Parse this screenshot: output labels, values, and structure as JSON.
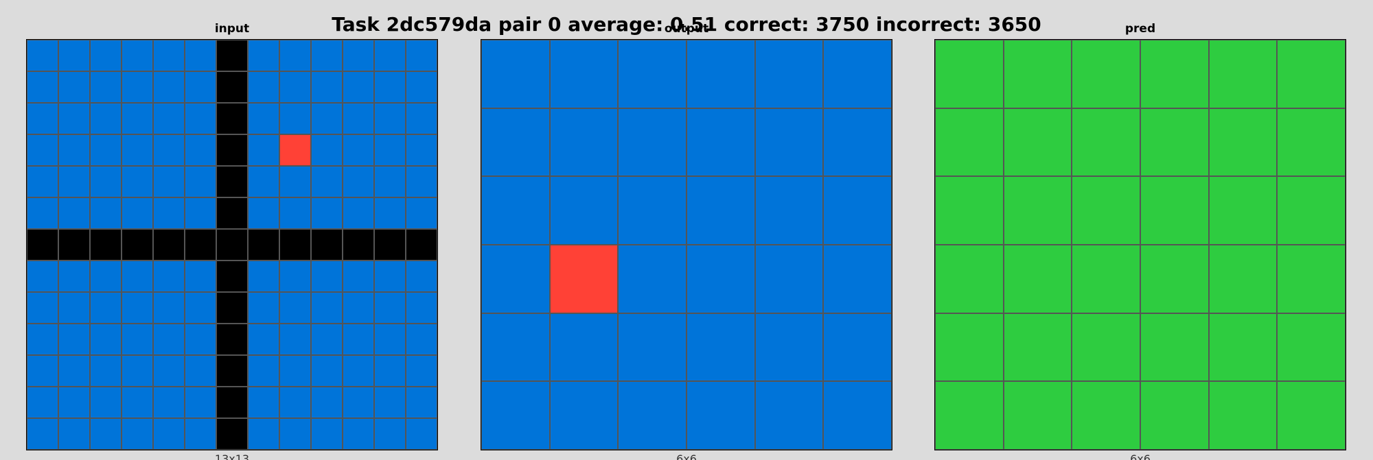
{
  "title": "Task 2dc579da pair 0 average: 0.51 correct: 3750 incorrect: 3650",
  "palette": {
    "0": "#000000",
    "1": "#0074D9",
    "2": "#FF4136",
    "3": "#2ECC40"
  },
  "panels": [
    {
      "name": "input",
      "title": "input",
      "caption": "13x13",
      "grid": [
        [
          1,
          1,
          1,
          1,
          1,
          1,
          0,
          1,
          1,
          1,
          1,
          1,
          1
        ],
        [
          1,
          1,
          1,
          1,
          1,
          1,
          0,
          1,
          1,
          1,
          1,
          1,
          1
        ],
        [
          1,
          1,
          1,
          1,
          1,
          1,
          0,
          1,
          1,
          1,
          1,
          1,
          1
        ],
        [
          1,
          1,
          1,
          1,
          1,
          1,
          0,
          1,
          2,
          1,
          1,
          1,
          1
        ],
        [
          1,
          1,
          1,
          1,
          1,
          1,
          0,
          1,
          1,
          1,
          1,
          1,
          1
        ],
        [
          1,
          1,
          1,
          1,
          1,
          1,
          0,
          1,
          1,
          1,
          1,
          1,
          1
        ],
        [
          0,
          0,
          0,
          0,
          0,
          0,
          0,
          0,
          0,
          0,
          0,
          0,
          0
        ],
        [
          1,
          1,
          1,
          1,
          1,
          1,
          0,
          1,
          1,
          1,
          1,
          1,
          1
        ],
        [
          1,
          1,
          1,
          1,
          1,
          1,
          0,
          1,
          1,
          1,
          1,
          1,
          1
        ],
        [
          1,
          1,
          1,
          1,
          1,
          1,
          0,
          1,
          1,
          1,
          1,
          1,
          1
        ],
        [
          1,
          1,
          1,
          1,
          1,
          1,
          0,
          1,
          1,
          1,
          1,
          1,
          1
        ],
        [
          1,
          1,
          1,
          1,
          1,
          1,
          0,
          1,
          1,
          1,
          1,
          1,
          1
        ],
        [
          1,
          1,
          1,
          1,
          1,
          1,
          0,
          1,
          1,
          1,
          1,
          1,
          1
        ]
      ]
    },
    {
      "name": "output",
      "title": "output",
      "caption": "6x6",
      "grid": [
        [
          1,
          1,
          1,
          1,
          1,
          1
        ],
        [
          1,
          1,
          1,
          1,
          1,
          1
        ],
        [
          1,
          1,
          1,
          1,
          1,
          1
        ],
        [
          1,
          2,
          1,
          1,
          1,
          1
        ],
        [
          1,
          1,
          1,
          1,
          1,
          1
        ],
        [
          1,
          1,
          1,
          1,
          1,
          1
        ]
      ]
    },
    {
      "name": "pred",
      "title": "pred",
      "caption": "6x6",
      "grid": [
        [
          3,
          3,
          3,
          3,
          3,
          3
        ],
        [
          3,
          3,
          3,
          3,
          3,
          3
        ],
        [
          3,
          3,
          3,
          3,
          3,
          3
        ],
        [
          3,
          3,
          3,
          3,
          3,
          3
        ],
        [
          3,
          3,
          3,
          3,
          3,
          3
        ],
        [
          3,
          3,
          3,
          3,
          3,
          3
        ]
      ]
    }
  ]
}
